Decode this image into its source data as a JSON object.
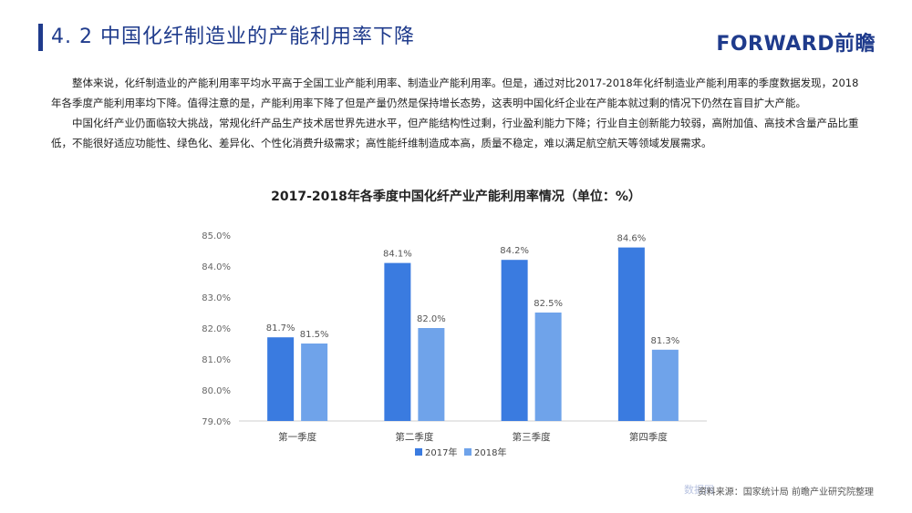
{
  "header": {
    "title": "4. 2  中国化纤制造业的产能利用率下降",
    "logo": "FORWARD前瞻"
  },
  "body_text": {
    "paragraph1": "整体来说，化纤制造业的产能利用率平均水平高于全国工业产能利用率、制造业产能利用率。但是，通过对比2017-2018年化纤制造业产能利用率的季度数据发现，2018年各季度产能利用率均下降。值得注意的是，产能利用率下降了但是产量仍然是保持增长态势，这表明中国化纤企业在产能本就过剩的情况下仍然在盲目扩大产能。",
    "paragraph2": "中国化纤产业仍面临较大挑战，常规化纤产品生产技术居世界先进水平，但产能结构性过剩，行业盈利能力下降；行业自主创新能力较弱，高附加值、高技术含量产品比重低，不能很好适应功能性、绿色化、差异化、个性化消费升级需求；高性能纤维制造成本高，质量不稳定，难以满足航空航天等领域发展需求。"
  },
  "chart_data": {
    "type": "bar",
    "title": "2017-2018年各季度中国化纤产业产能利用率情况（单位：%）",
    "categories": [
      "第一季度",
      "第二季度",
      "第三季度",
      "第四季度"
    ],
    "series": [
      {
        "name": "2017年",
        "values": [
          81.7,
          84.1,
          84.2,
          84.6
        ],
        "color": "#3a7be0"
      },
      {
        "name": "2018年",
        "values": [
          81.5,
          82.0,
          82.5,
          81.3
        ],
        "color": "#6fa3ea"
      }
    ],
    "ylim": [
      79.0,
      85.0
    ],
    "yticks": [
      "79.0%",
      "80.0%",
      "81.0%",
      "82.0%",
      "83.0%",
      "84.0%",
      "85.0%"
    ],
    "value_labels": {
      "2017年": [
        "81.7%",
        "84.1%",
        "84.2%",
        "84.6%"
      ],
      "2018年": [
        "81.5%",
        "82.0%",
        "82.5%",
        "81.3%"
      ]
    },
    "grid": false,
    "legend_position": "bottom"
  },
  "footer": {
    "source": "资料来源：国家统计局  前瞻产业研究院整理",
    "badge": "数据网"
  }
}
